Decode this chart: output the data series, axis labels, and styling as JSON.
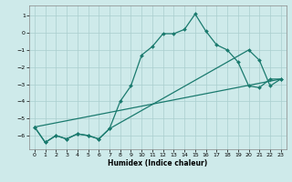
{
  "title": "",
  "xlabel": "Humidex (Indice chaleur)",
  "background_color": "#ceeaea",
  "grid_color": "#aacece",
  "line_color": "#1a7a6e",
  "xlim": [
    -0.5,
    23.5
  ],
  "ylim": [
    -6.8,
    1.6
  ],
  "yticks": [
    1,
    0,
    -1,
    -2,
    -3,
    -4,
    -5,
    -6
  ],
  "xticks": [
    0,
    1,
    2,
    3,
    4,
    5,
    6,
    7,
    8,
    9,
    10,
    11,
    12,
    13,
    14,
    15,
    16,
    17,
    18,
    19,
    20,
    21,
    22,
    23
  ],
  "line1_x": [
    0,
    1,
    2,
    3,
    4,
    5,
    6,
    7,
    8,
    9,
    10,
    11,
    12,
    13,
    14,
    15,
    16,
    17,
    18,
    19,
    20,
    21,
    22,
    23
  ],
  "line1_y": [
    -5.5,
    -6.4,
    -6.0,
    -6.2,
    -5.9,
    -6.0,
    -6.2,
    -5.6,
    -4.0,
    -3.1,
    -1.3,
    -0.8,
    -0.05,
    -0.05,
    0.2,
    1.1,
    0.1,
    -0.7,
    -1.0,
    -1.7,
    -3.1,
    -3.2,
    -2.7,
    -2.7
  ],
  "line2_x": [
    0,
    1,
    2,
    3,
    4,
    5,
    6,
    7,
    20,
    21,
    22,
    23
  ],
  "line2_y": [
    -5.5,
    -6.4,
    -6.0,
    -6.2,
    -5.9,
    -6.0,
    -6.2,
    -5.6,
    -1.0,
    -1.6,
    -3.1,
    -2.7
  ],
  "line3_x": [
    0,
    23
  ],
  "line3_y": [
    -5.5,
    -2.7
  ]
}
